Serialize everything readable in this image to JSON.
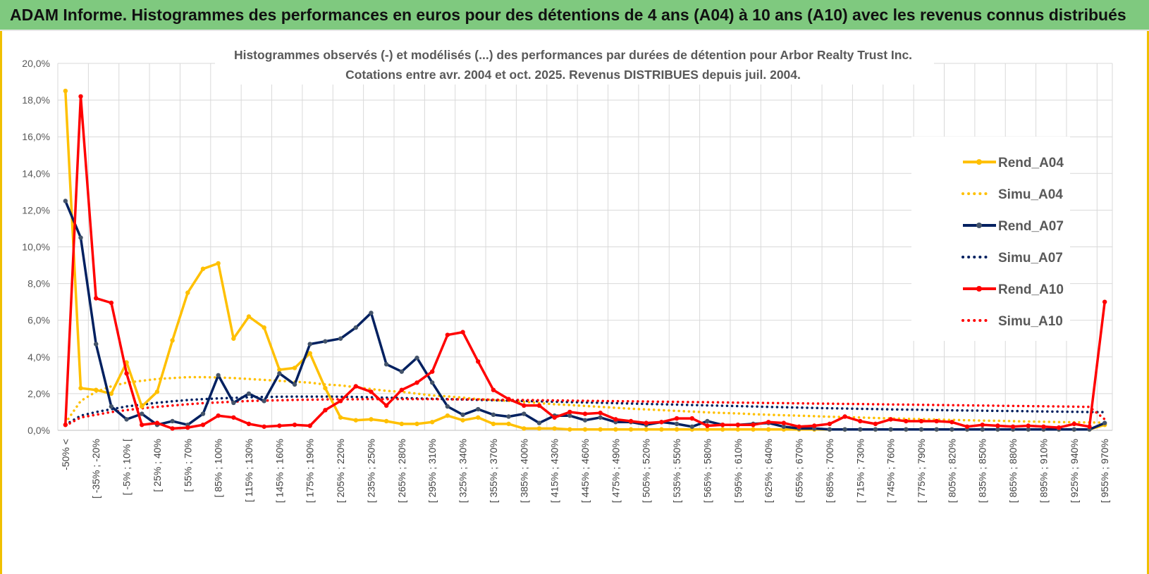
{
  "banner": {
    "title": "ADAM Informe. Histogrammes des performances en euros pour des détentions de 4 ans (A04) à 10 ans (A10) avec les revenus connus distribués"
  },
  "chart_data": {
    "type": "line",
    "title": "Histogrammes observés (-) et modélisés (...) des performances par durées de détention pour Arbor Realty Trust Inc.",
    "subtitle": "Cotations entre avr. 2004 et oct. 2025.  Revenus DISTRIBUES depuis juil. 2004.",
    "xlabel": "",
    "ylabel": "",
    "ylim": [
      0,
      20
    ],
    "y_ticks": [
      "0,0%",
      "2,0%",
      "4,0%",
      "6,0%",
      "8,0%",
      "10,0%",
      "12,0%",
      "14,0%",
      "16,0%",
      "18,0%",
      "20,0%"
    ],
    "grid": true,
    "legend_position": "right",
    "x_tick_labels": [
      "-50% <",
      "[ -35% ; -20%",
      "[ -5% ; 10% [",
      "[ 25% ; 40%",
      "[ 55% ; 70%",
      "[ 85% ; 100%",
      "[ 115% ; 130%",
      "[ 145% ; 160%",
      "[ 175% ; 190%",
      "[ 205% ; 220%",
      "[ 235% ; 250%",
      "[ 265% ; 280%",
      "[ 295% ; 310%",
      "[ 325% ; 340%",
      "[ 355% ; 370%",
      "[ 385% ; 400%",
      "[ 415% ; 430%",
      "[ 445% ; 460%",
      "[ 475% ; 490%",
      "[ 505% ; 520%",
      "[ 535% ; 550%",
      "[ 565% ; 580%",
      "[ 595% ; 610%",
      "[ 625% ; 640%",
      "[ 655% ; 670%",
      "[ 685% ; 700%",
      "[ 715% ; 730%",
      "[ 745% ; 760%",
      "[ 775% ; 790%",
      "[ 805% ; 820%",
      "[ 835% ; 850%",
      "[ 865% ; 880%",
      "[ 895% ; 910%",
      "[ 925% ; 940%",
      "[ 955% ; 970%"
    ],
    "x_count": 69,
    "series": [
      {
        "name": "Rend_A04",
        "style": "solid",
        "color": "#ffc000",
        "values": [
          18.5,
          2.3,
          2.2,
          2.0,
          3.7,
          1.3,
          2.1,
          4.9,
          7.5,
          8.8,
          9.1,
          5.0,
          6.2,
          5.6,
          3.3,
          3.4,
          4.2,
          2.3,
          0.7,
          0.55,
          0.6,
          0.5,
          0.35,
          0.35,
          0.45,
          0.8,
          0.55,
          0.7,
          0.35,
          0.35,
          0.1,
          0.1,
          0.1,
          0.05,
          0.05,
          0.05,
          0.05,
          0.05,
          0.05,
          0.05,
          0.05,
          0.05,
          0.05,
          0.05,
          0.05,
          0.05,
          0.05,
          0.05,
          0.05,
          0.05,
          0.05,
          0.05,
          0.05,
          0.05,
          0.05,
          0.05,
          0.05,
          0.05,
          0.05,
          0.05,
          0.05,
          0.05,
          0.05,
          0.05,
          0.05,
          0.05,
          0.05,
          0.05,
          0.3
        ]
      },
      {
        "name": "Simu_A04",
        "style": "dotted",
        "color": "#ffc000",
        "values": [
          0.4,
          1.6,
          2.1,
          2.4,
          2.6,
          2.7,
          2.8,
          2.85,
          2.9,
          2.9,
          2.88,
          2.85,
          2.8,
          2.75,
          2.7,
          2.65,
          2.6,
          2.5,
          2.45,
          2.35,
          2.25,
          2.15,
          2.1,
          2.0,
          1.9,
          1.85,
          1.78,
          1.7,
          1.65,
          1.6,
          1.55,
          1.48,
          1.42,
          1.38,
          1.33,
          1.28,
          1.23,
          1.18,
          1.14,
          1.1,
          1.06,
          1.02,
          0.98,
          0.95,
          0.92,
          0.88,
          0.85,
          0.82,
          0.8,
          0.77,
          0.74,
          0.72,
          0.7,
          0.67,
          0.65,
          0.63,
          0.61,
          0.59,
          0.57,
          0.55,
          0.53,
          0.52,
          0.5,
          0.48,
          0.47,
          0.45,
          0.44,
          0.43,
          0.42
        ]
      },
      {
        "name": "Rend_A07",
        "style": "solid",
        "color": "#002060",
        "values": [
          12.5,
          10.5,
          4.7,
          1.3,
          0.6,
          0.9,
          0.3,
          0.5,
          0.3,
          0.9,
          3.0,
          1.5,
          2.0,
          1.6,
          3.1,
          2.5,
          4.7,
          4.85,
          5.0,
          5.6,
          6.4,
          3.6,
          3.2,
          3.95,
          2.6,
          1.3,
          0.85,
          1.15,
          0.85,
          0.75,
          0.9,
          0.4,
          0.8,
          0.8,
          0.55,
          0.7,
          0.45,
          0.45,
          0.3,
          0.45,
          0.35,
          0.2,
          0.5,
          0.3,
          0.3,
          0.35,
          0.4,
          0.2,
          0.1,
          0.1,
          0.05,
          0.05,
          0.05,
          0.05,
          0.05,
          0.05,
          0.05,
          0.05,
          0.05,
          0.05,
          0.05,
          0.05,
          0.05,
          0.05,
          0.05,
          0.05,
          0.05,
          0.05,
          0.4
        ]
      },
      {
        "name": "Simu_A07",
        "style": "dotted",
        "color": "#002060",
        "values": [
          0.3,
          0.8,
          1.0,
          1.15,
          1.3,
          1.4,
          1.5,
          1.58,
          1.65,
          1.7,
          1.74,
          1.77,
          1.8,
          1.82,
          1.83,
          1.84,
          1.84,
          1.84,
          1.83,
          1.82,
          1.8,
          1.78,
          1.76,
          1.74,
          1.72,
          1.7,
          1.68,
          1.66,
          1.64,
          1.62,
          1.6,
          1.58,
          1.56,
          1.54,
          1.52,
          1.5,
          1.48,
          1.46,
          1.44,
          1.42,
          1.4,
          1.38,
          1.36,
          1.34,
          1.32,
          1.3,
          1.28,
          1.26,
          1.24,
          1.22,
          1.2,
          1.19,
          1.17,
          1.16,
          1.14,
          1.13,
          1.12,
          1.1,
          1.09,
          1.08,
          1.07,
          1.06,
          1.05,
          1.04,
          1.03,
          1.02,
          1.01,
          1.0,
          0.99
        ]
      },
      {
        "name": "Rend_A10",
        "style": "solid",
        "color": "#ff0000",
        "values": [
          0.3,
          18.2,
          7.2,
          6.95,
          3.1,
          0.3,
          0.4,
          0.1,
          0.15,
          0.3,
          0.8,
          0.7,
          0.35,
          0.2,
          0.25,
          0.3,
          0.25,
          1.1,
          1.6,
          2.4,
          2.1,
          1.35,
          2.2,
          2.6,
          3.2,
          5.2,
          5.35,
          3.75,
          2.2,
          1.7,
          1.35,
          1.35,
          0.7,
          1.0,
          0.9,
          0.95,
          0.6,
          0.5,
          0.4,
          0.45,
          0.65,
          0.65,
          0.25,
          0.3,
          0.3,
          0.3,
          0.45,
          0.4,
          0.2,
          0.25,
          0.35,
          0.75,
          0.5,
          0.35,
          0.6,
          0.5,
          0.5,
          0.5,
          0.45,
          0.2,
          0.3,
          0.25,
          0.2,
          0.25,
          0.2,
          0.15,
          0.35,
          0.2,
          7.0
        ]
      },
      {
        "name": "Simu_A10",
        "style": "dotted",
        "color": "#ff0000",
        "values": [
          0.25,
          0.7,
          0.85,
          1.0,
          1.1,
          1.2,
          1.28,
          1.35,
          1.42,
          1.48,
          1.52,
          1.56,
          1.6,
          1.62,
          1.64,
          1.66,
          1.67,
          1.68,
          1.69,
          1.69,
          1.7,
          1.7,
          1.7,
          1.7,
          1.7,
          1.69,
          1.69,
          1.68,
          1.67,
          1.66,
          1.65,
          1.64,
          1.63,
          1.62,
          1.61,
          1.6,
          1.59,
          1.58,
          1.57,
          1.56,
          1.55,
          1.54,
          1.53,
          1.52,
          1.51,
          1.5,
          1.49,
          1.48,
          1.47,
          1.46,
          1.45,
          1.44,
          1.43,
          1.42,
          1.41,
          1.4,
          1.39,
          1.38,
          1.37,
          1.36,
          1.35,
          1.34,
          1.33,
          1.32,
          1.31,
          1.3,
          1.29,
          1.28,
          0.6
        ]
      }
    ]
  }
}
